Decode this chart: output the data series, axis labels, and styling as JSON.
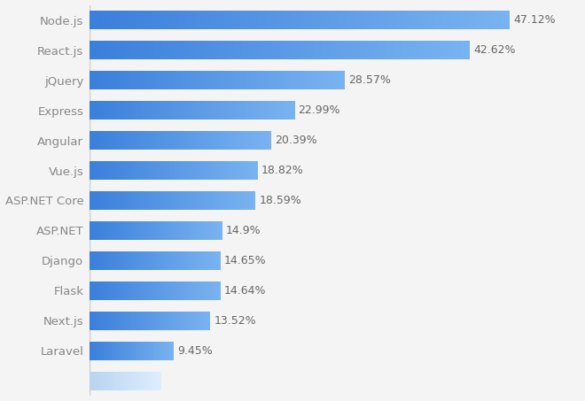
{
  "categories": [
    "Node.js",
    "React.js",
    "jQuery",
    "Express",
    "Angular",
    "Vue.js",
    "ASP.NET Core",
    "ASP.NET",
    "Django",
    "Flask",
    "Next.js",
    "Laravel"
  ],
  "values": [
    47.12,
    42.62,
    28.57,
    22.99,
    20.39,
    18.82,
    18.59,
    14.9,
    14.65,
    14.64,
    13.52,
    9.45
  ],
  "bar_color_left": "#3a7fdb",
  "bar_color_right": "#7ab3f0",
  "label_color": "#888888",
  "value_color": "#666666",
  "background_color": "#f4f4f4",
  "grid_color": "#e0e0e0",
  "xlim": [
    0,
    55
  ],
  "bar_height": 0.6,
  "fontsize_labels": 9.5,
  "fontsize_values": 9.0,
  "partial_bar_value": 8.0,
  "partial_bar_color_left": "#b8d4f0",
  "partial_bar_color_right": "#ddeeff"
}
